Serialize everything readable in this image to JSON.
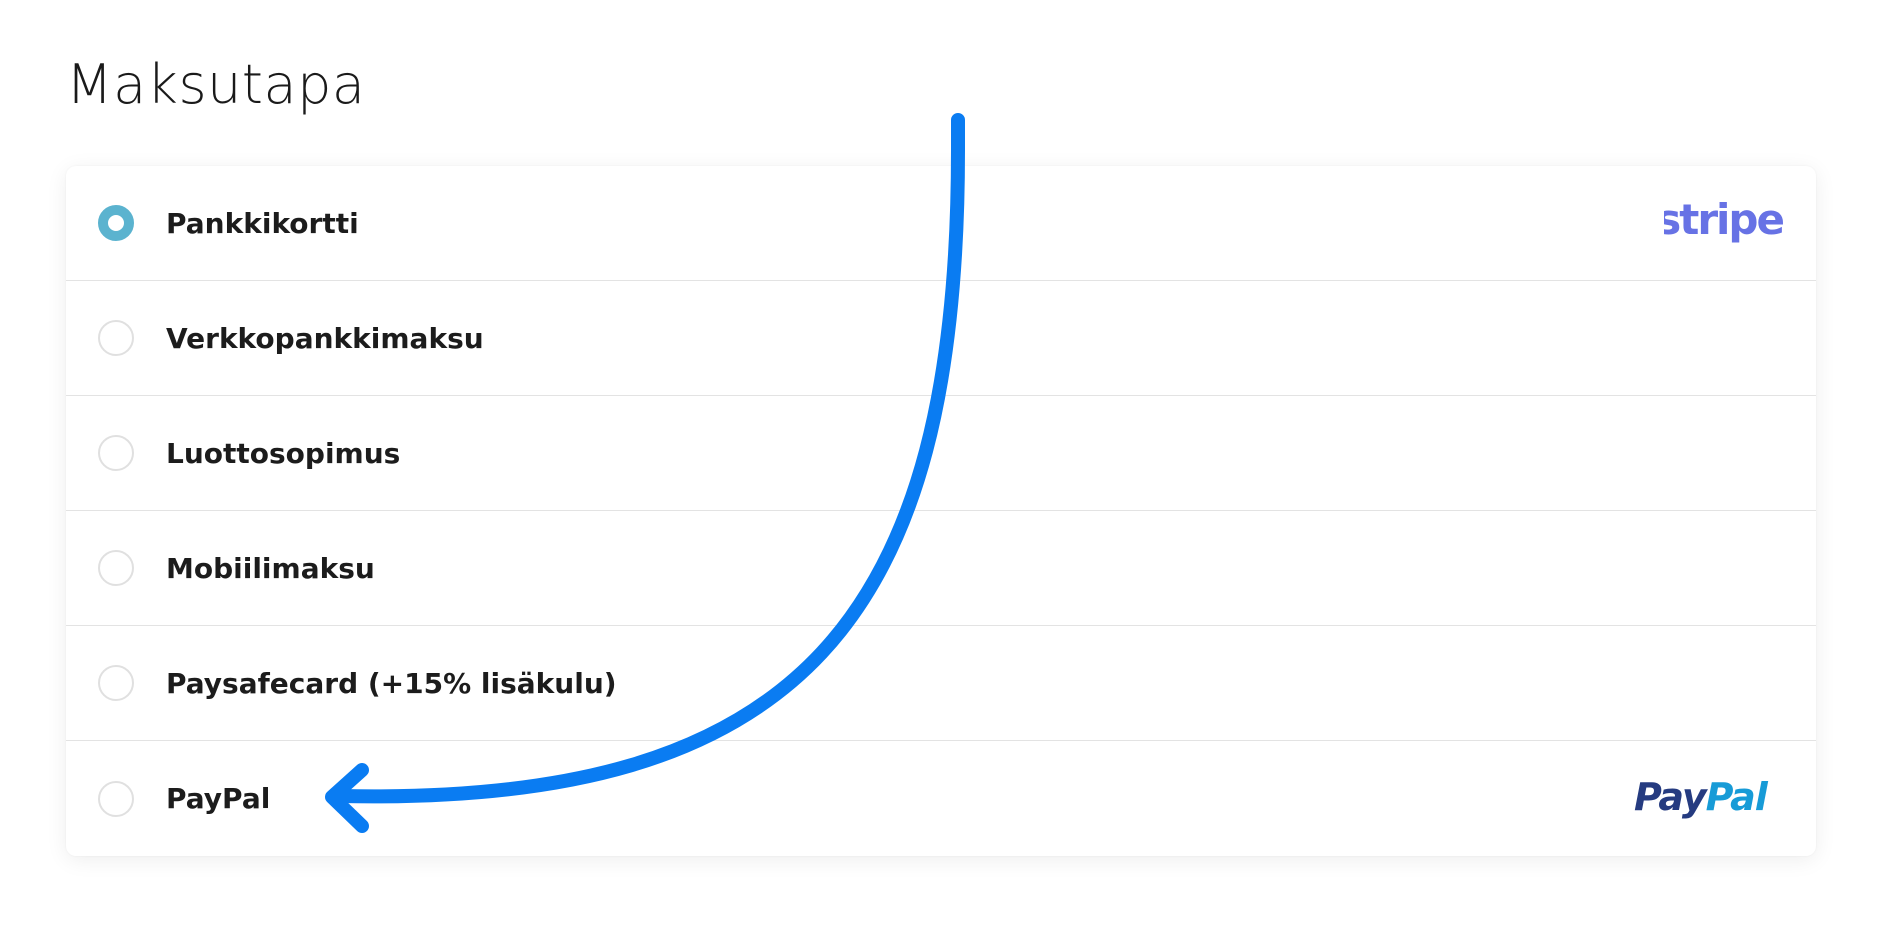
{
  "title": "Maksutapa",
  "payment_methods": [
    {
      "label": "Pankkikortti",
      "selected": true,
      "logo": "stripe-logo"
    },
    {
      "label": "Verkkopankkimaksu",
      "selected": false
    },
    {
      "label": "Luottosopimus",
      "selected": false
    },
    {
      "label": "Mobiilimaksu",
      "selected": false
    },
    {
      "label": "Paysafecard (+15% lisäkulu)",
      "selected": false
    },
    {
      "label": "PayPal",
      "selected": false,
      "logo": "paypal-logo"
    }
  ],
  "logos": {
    "stripe": "stripe",
    "paypal_a": "Pay",
    "paypal_b": "Pal"
  },
  "colors": {
    "radio_selected": "#5bb3cf",
    "stripe": "#6772e5",
    "paypal_dark": "#253b80",
    "paypal_light": "#179bd7",
    "arrow": "#0a7cf2"
  }
}
